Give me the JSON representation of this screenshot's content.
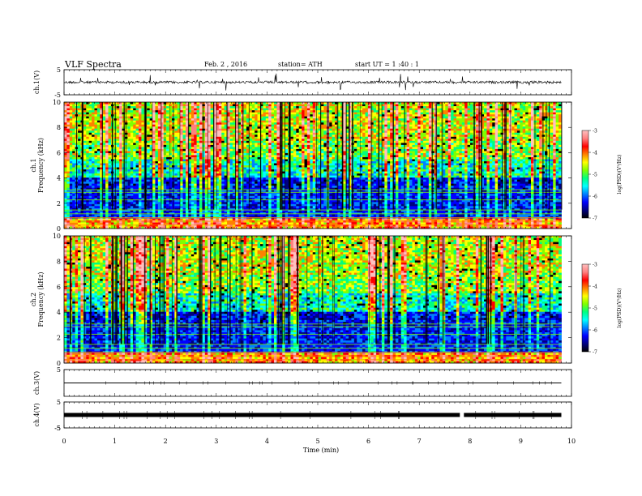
{
  "header": {
    "title": "VLF  Spectra",
    "date": "Feb. 2  , 2016",
    "station": "station= ATH",
    "start": "start  UT  =   1  :40 : 1"
  },
  "chart_data": {
    "type": "heatmap",
    "xlabel": "Time  (min)",
    "xlim": [
      0,
      10
    ],
    "x_ticks": [
      "0",
      "1",
      "2",
      "3",
      "4",
      "5",
      "6",
      "7",
      "8",
      "9",
      "10"
    ],
    "data_end_min": 9.8,
    "panels": [
      {
        "id": "ch1-wave",
        "type": "line",
        "ylabel": "ch.1(V)",
        "ylim": [
          -5,
          5
        ],
        "y_ticks": [
          "5",
          "-5"
        ]
      },
      {
        "id": "ch1-spec",
        "type": "heatmap",
        "ylabel": "ch.1\nFrequency  (kHz)",
        "ylim": [
          0,
          10
        ],
        "y_ticks": [
          "0",
          "2",
          "4",
          "6",
          "8",
          "10"
        ],
        "colorbar": {
          "label": "log(PSD)(V²/Hz)",
          "range": [
            -7,
            -3
          ],
          "ticks": [
            "-3",
            "-4",
            "-5",
            "-6",
            "-7"
          ]
        }
      },
      {
        "id": "ch2-spec",
        "type": "heatmap",
        "ylabel": "ch.2\nFrequency  (kHz)",
        "ylim": [
          0,
          10
        ],
        "y_ticks": [
          "0",
          "2",
          "4",
          "6",
          "8",
          "10"
        ],
        "colorbar": {
          "label": "log(PSD)(V²/Hz)",
          "range": [
            -7,
            -3
          ],
          "ticks": [
            "-3",
            "-4",
            "-5",
            "-6",
            "-7"
          ]
        }
      },
      {
        "id": "ch3-wave",
        "type": "line",
        "ylabel": "ch.3(V)",
        "ylim": [
          -5,
          5
        ],
        "y_ticks": [
          "5"
        ]
      },
      {
        "id": "ch4-wave",
        "type": "line",
        "ylabel": "ch.4(V)",
        "ylim": [
          -5,
          5
        ],
        "y_ticks": [
          "5",
          "-5"
        ]
      }
    ],
    "ch1_wave_mean_V": 0.0,
    "ch3_wave_mean_V": 0.0,
    "ch4_wave_mean_V": 0.0,
    "colormap": [
      "#000000",
      "#000080",
      "#0000ff",
      "#0080ff",
      "#00ffff",
      "#00ff80",
      "#80ff00",
      "#ffff00",
      "#ff8000",
      "#ff0000",
      "#ff8080",
      "#ffc0c0"
    ]
  }
}
